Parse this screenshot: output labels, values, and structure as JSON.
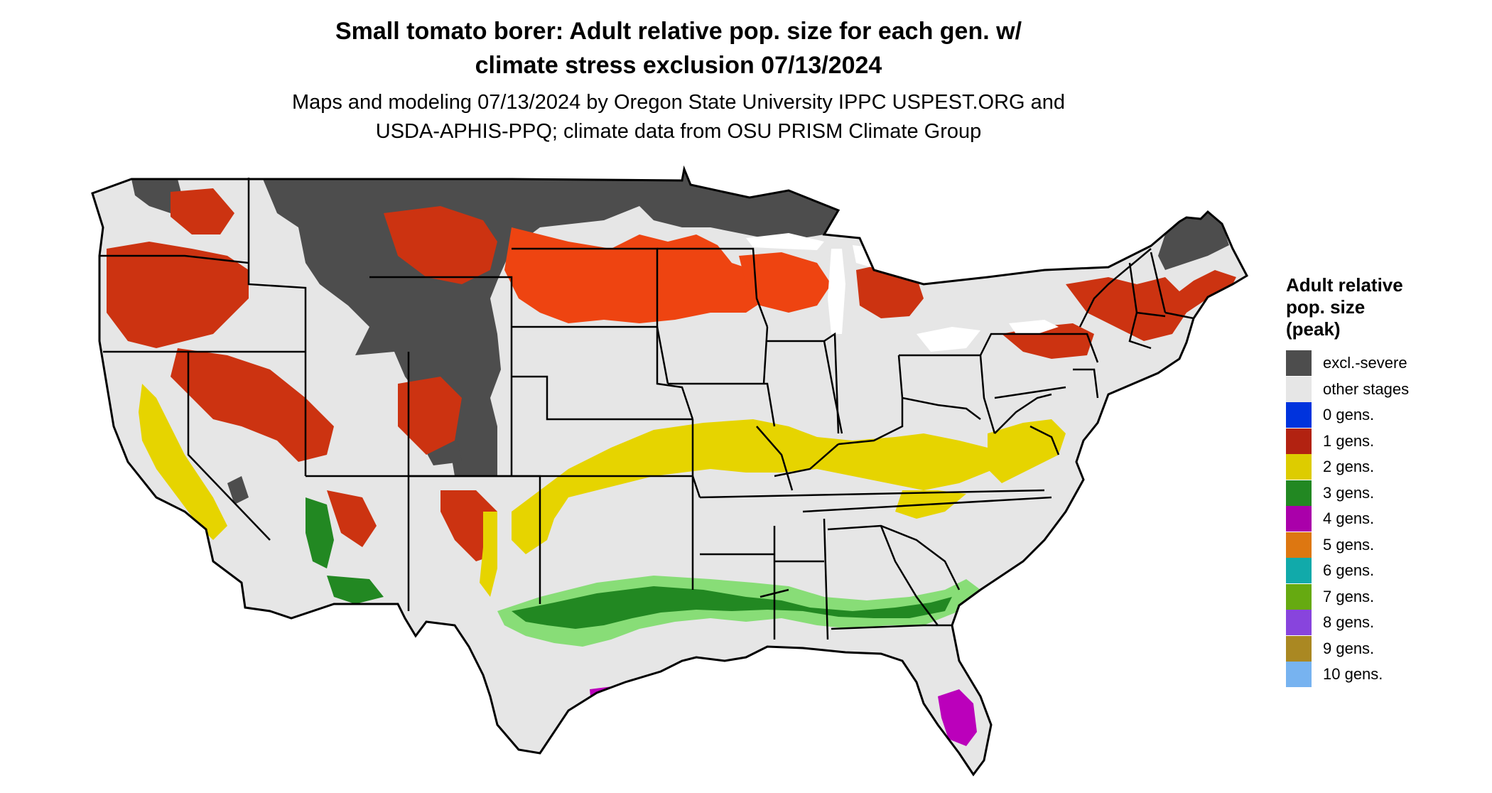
{
  "title": {
    "line1": "Small tomato borer: Adult relative pop. size for each gen. w/",
    "line2": "climate stress exclusion 07/13/2024"
  },
  "subtitle": {
    "line1": "Maps and modeling 07/13/2024 by Oregon State University IPPC USPEST.ORG and",
    "line2": "USDA-APHIS-PPQ; climate data from OSU PRISM Climate Group"
  },
  "legend": {
    "title_line1": "Adult relative",
    "title_line2": "pop. size",
    "title_line3": "(peak)",
    "items": [
      {
        "label": "excl.-severe",
        "color": "#4d4d4d"
      },
      {
        "label": "other stages",
        "color": "#e6e6e6"
      },
      {
        "label": "0 gens.",
        "color": "#0033dd"
      },
      {
        "label": "1 gens.",
        "color": "#b22211"
      },
      {
        "label": "2 gens.",
        "color": "#ddcc00"
      },
      {
        "label": "3 gens.",
        "color": "#228822"
      },
      {
        "label": "4 gens.",
        "color": "#aa00aa"
      },
      {
        "label": "5 gens.",
        "color": "#dd7711"
      },
      {
        "label": "6 gens.",
        "color": "#11aaaa"
      },
      {
        "label": "7 gens.",
        "color": "#66aa11"
      },
      {
        "label": "8 gens.",
        "color": "#8844dd"
      },
      {
        "label": "9 gens.",
        "color": "#aa8822"
      },
      {
        "label": "10 gens.",
        "color": "#77b3f0"
      }
    ]
  },
  "map_colors": {
    "background": "#e6e6e6",
    "excluded": "#4d4d4d",
    "one_gen": "#cc3311",
    "one_gen_bright": "#ee4411",
    "two_gen": "#e6d400",
    "three_gen": "#228822",
    "three_gen_light": "#88dd77",
    "four_gen": "#bb00bb",
    "border": "#000000"
  }
}
